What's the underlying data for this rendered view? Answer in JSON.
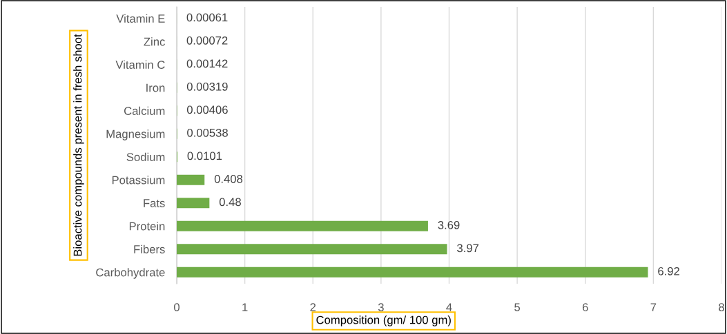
{
  "chart_data": {
    "type": "bar",
    "orientation": "horizontal",
    "xlabel": "Composition (gm/ 100 gm)",
    "ylabel": "Bioactive compounds present in fresh shoot",
    "categories": [
      "Vitamin E",
      "Zinc",
      "Vitamin C",
      "Iron",
      "Calcium",
      "Magnesium",
      "Sodium",
      "Potassium",
      "Fats",
      "Protein",
      "Fibers",
      "Carbohydrate"
    ],
    "values": [
      0.00061,
      0.00072,
      0.00142,
      0.00319,
      0.00406,
      0.00538,
      0.0101,
      0.408,
      0.48,
      3.69,
      3.97,
      6.92
    ],
    "color": "#70ad47",
    "xlim": [
      0,
      8
    ],
    "xticks": [
      0,
      1,
      2,
      3,
      4,
      5,
      6,
      7,
      8
    ],
    "grid": "x",
    "data_labels": true
  }
}
